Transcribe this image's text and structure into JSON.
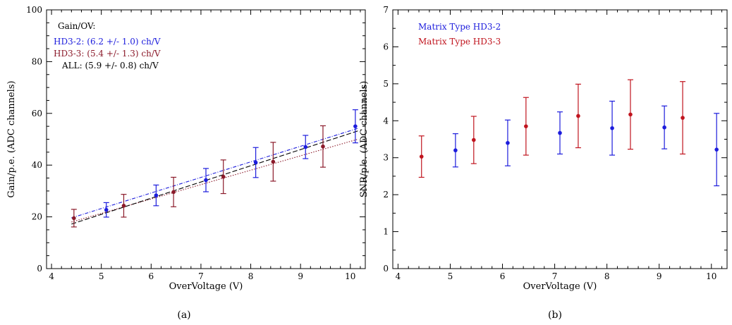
{
  "chart_data": [
    {
      "type": "scatter",
      "panel_label": "(a)",
      "xlabel": "OverVoltage (V)",
      "ylabel": "Gain/p.e. (ADC channels)",
      "xlim": [
        3.9,
        10.3
      ],
      "ylim": [
        0,
        100
      ],
      "xticks": [
        4,
        5,
        6,
        7,
        8,
        9,
        10
      ],
      "yticks": [
        0,
        20,
        40,
        60,
        80,
        100
      ],
      "grid": false,
      "legend_placement": "top-left",
      "legend_title": "Gain/OV:",
      "colors": {
        "HD3-2": "#1c1cdc",
        "HD3-3": "#8b1a2a",
        "ALL": "#000000"
      },
      "series": [
        {
          "name": "HD3-2: (6.2 +/- 1.0) ch/V",
          "x": [
            5.1,
            6.1,
            7.1,
            8.1,
            9.1,
            10.1
          ],
          "y": [
            22.7,
            28.3,
            34.2,
            41.0,
            47.0,
            55.0
          ],
          "err": [
            2.8,
            4.0,
            4.5,
            5.8,
            4.5,
            6.4
          ],
          "fit_y": [
            19.6,
            54.2
          ]
        },
        {
          "name": "HD3-3: (5.4 +/- 1.3) ch/V",
          "x": [
            4.45,
            5.45,
            6.45,
            7.45,
            8.45,
            9.45
          ],
          "y": [
            19.5,
            24.3,
            29.6,
            35.5,
            41.3,
            47.2
          ],
          "err": [
            3.4,
            4.4,
            5.7,
            6.5,
            7.5,
            8.0
          ],
          "fit_y": [
            18.0,
            50.0
          ]
        },
        {
          "name": "ALL: (5.9 +/- 0.8) ch/V",
          "fit_y": [
            17.2,
            53.2
          ]
        }
      ],
      "fit_x": [
        4.4,
        10.15
      ]
    },
    {
      "type": "scatter",
      "panel_label": "(b)",
      "xlabel": "OverVoltage (V)",
      "ylabel": "SNR/p.e. (ADC channels)",
      "xlim": [
        3.9,
        10.3
      ],
      "ylim": [
        0,
        7
      ],
      "xticks": [
        4,
        5,
        6,
        7,
        8,
        9,
        10
      ],
      "yticks": [
        0,
        1,
        2,
        3,
        4,
        5,
        6,
        7
      ],
      "grid": false,
      "legend_placement": "top-left",
      "colors": {
        "HD3-2": "#1c1cdc",
        "HD3-3": "#c0141e"
      },
      "series": [
        {
          "name": "Matrix Type HD3-2",
          "x": [
            5.1,
            6.1,
            7.1,
            8.1,
            9.1,
            10.1
          ],
          "y": [
            3.2,
            3.4,
            3.67,
            3.8,
            3.82,
            3.22
          ],
          "err": [
            0.45,
            0.62,
            0.57,
            0.73,
            0.58,
            0.98
          ]
        },
        {
          "name": "Matrix Type HD3-3",
          "x": [
            4.45,
            5.45,
            6.45,
            7.45,
            8.45,
            9.45
          ],
          "y": [
            3.03,
            3.48,
            3.85,
            4.13,
            4.17,
            4.08
          ],
          "err": [
            0.56,
            0.64,
            0.78,
            0.86,
            0.94,
            0.98
          ]
        }
      ]
    }
  ]
}
